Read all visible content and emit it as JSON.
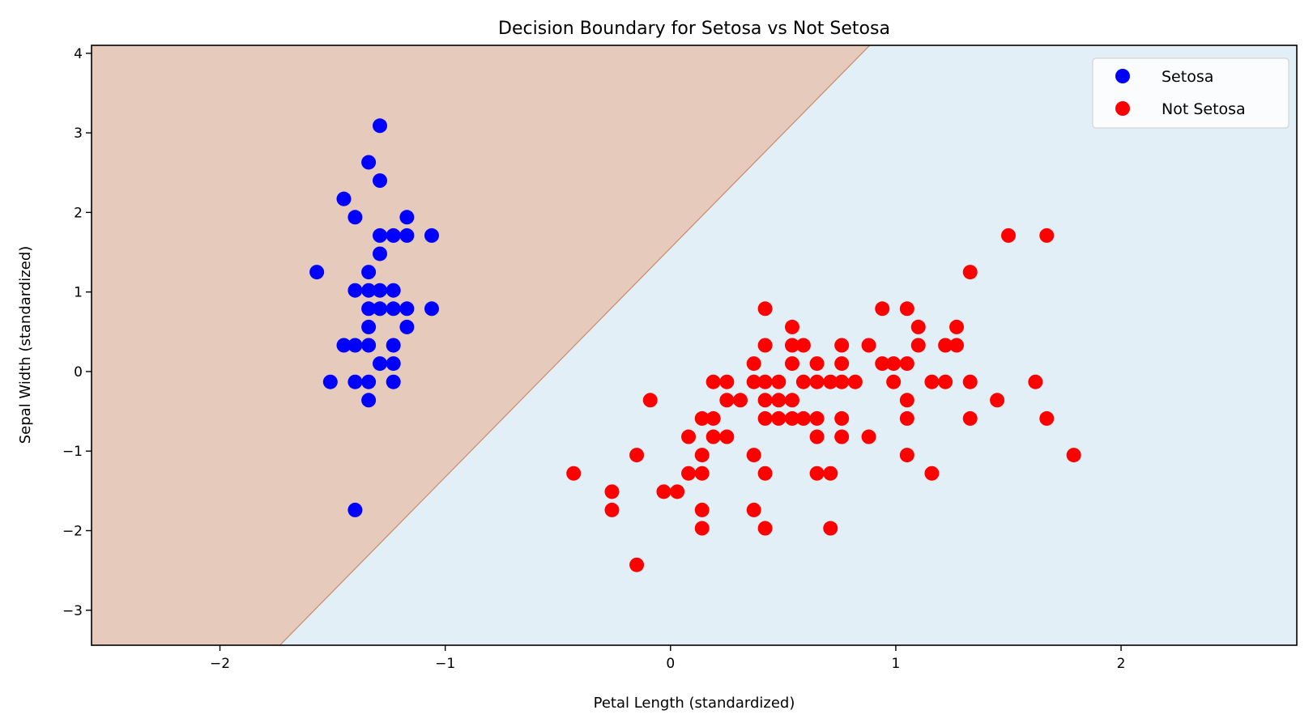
{
  "chart_data": {
    "type": "scatter",
    "title": "Decision Boundary for Setosa vs Not Setosa",
    "xlabel": "Petal Length (standardized)",
    "ylabel": "Sepal Width (standardized)",
    "xlim": [
      -2.57,
      2.78
    ],
    "ylim": [
      -3.44,
      4.1
    ],
    "xticks": [
      -2,
      -1,
      0,
      1,
      2
    ],
    "xtick_labels": [
      "−2",
      "−1",
      "0",
      "1",
      "2"
    ],
    "yticks": [
      -3,
      -2,
      -1,
      0,
      1,
      2,
      3,
      4
    ],
    "ytick_labels": [
      "−3",
      "−2",
      "−1",
      "0",
      "1",
      "2",
      "3",
      "4"
    ],
    "grid": false,
    "legend_position": "top-right",
    "decision_boundary": {
      "points": [
        [
          0.874,
          4.07
        ],
        [
          -1.734,
          -3.44
        ]
      ],
      "left_region_color": "#e6cbbd",
      "right_region_color": "#e3eff6",
      "edge_color": "#c98a6a"
    },
    "series": [
      {
        "name": "Setosa",
        "color": "#0000ff",
        "points": [
          [
            -1.29,
            3.09
          ],
          [
            -1.34,
            2.63
          ],
          [
            -1.29,
            2.4
          ],
          [
            -1.45,
            2.17
          ],
          [
            -1.4,
            1.94
          ],
          [
            -1.17,
            1.94
          ],
          [
            -1.29,
            1.71
          ],
          [
            -1.23,
            1.71
          ],
          [
            -1.17,
            1.71
          ],
          [
            -1.06,
            1.71
          ],
          [
            -1.29,
            1.48
          ],
          [
            -1.57,
            1.25
          ],
          [
            -1.34,
            1.25
          ],
          [
            -1.4,
            1.02
          ],
          [
            -1.34,
            1.02
          ],
          [
            -1.29,
            1.02
          ],
          [
            -1.23,
            1.02
          ],
          [
            -1.34,
            0.79
          ],
          [
            -1.29,
            0.79
          ],
          [
            -1.23,
            0.79
          ],
          [
            -1.17,
            0.79
          ],
          [
            -1.06,
            0.79
          ],
          [
            -1.34,
            0.56
          ],
          [
            -1.17,
            0.56
          ],
          [
            -1.45,
            0.33
          ],
          [
            -1.4,
            0.33
          ],
          [
            -1.34,
            0.33
          ],
          [
            -1.23,
            0.33
          ],
          [
            -1.29,
            0.1
          ],
          [
            -1.23,
            0.1
          ],
          [
            -1.51,
            -0.13
          ],
          [
            -1.4,
            -0.13
          ],
          [
            -1.34,
            -0.13
          ],
          [
            -1.23,
            -0.13
          ],
          [
            -1.34,
            -0.36
          ],
          [
            -1.4,
            -1.74
          ]
        ]
      },
      {
        "name": "Not Setosa",
        "color": "#ff0000",
        "points": [
          [
            1.5,
            1.71
          ],
          [
            1.67,
            1.71
          ],
          [
            1.33,
            1.25
          ],
          [
            0.42,
            0.79
          ],
          [
            0.94,
            0.79
          ],
          [
            1.05,
            0.79
          ],
          [
            0.54,
            0.56
          ],
          [
            1.1,
            0.56
          ],
          [
            1.27,
            0.56
          ],
          [
            0.42,
            0.33
          ],
          [
            0.54,
            0.33
          ],
          [
            0.59,
            0.33
          ],
          [
            0.76,
            0.33
          ],
          [
            0.88,
            0.33
          ],
          [
            1.1,
            0.33
          ],
          [
            1.22,
            0.33
          ],
          [
            1.27,
            0.33
          ],
          [
            0.37,
            0.1
          ],
          [
            0.54,
            0.1
          ],
          [
            0.65,
            0.1
          ],
          [
            0.76,
            0.1
          ],
          [
            0.94,
            0.1
          ],
          [
            0.99,
            0.1
          ],
          [
            1.05,
            0.1
          ],
          [
            0.19,
            -0.13
          ],
          [
            0.25,
            -0.13
          ],
          [
            0.37,
            -0.13
          ],
          [
            0.42,
            -0.13
          ],
          [
            0.48,
            -0.13
          ],
          [
            0.59,
            -0.13
          ],
          [
            0.65,
            -0.13
          ],
          [
            0.71,
            -0.13
          ],
          [
            0.76,
            -0.13
          ],
          [
            0.82,
            -0.13
          ],
          [
            0.99,
            -0.13
          ],
          [
            1.16,
            -0.13
          ],
          [
            1.22,
            -0.13
          ],
          [
            1.33,
            -0.13
          ],
          [
            1.62,
            -0.13
          ],
          [
            -0.09,
            -0.36
          ],
          [
            0.25,
            -0.36
          ],
          [
            0.31,
            -0.36
          ],
          [
            0.42,
            -0.36
          ],
          [
            0.48,
            -0.36
          ],
          [
            0.54,
            -0.36
          ],
          [
            1.05,
            -0.36
          ],
          [
            1.45,
            -0.36
          ],
          [
            0.14,
            -0.59
          ],
          [
            0.19,
            -0.59
          ],
          [
            0.42,
            -0.59
          ],
          [
            0.48,
            -0.59
          ],
          [
            0.54,
            -0.59
          ],
          [
            0.59,
            -0.59
          ],
          [
            0.65,
            -0.59
          ],
          [
            0.76,
            -0.59
          ],
          [
            1.05,
            -0.59
          ],
          [
            1.33,
            -0.59
          ],
          [
            1.67,
            -0.59
          ],
          [
            0.08,
            -0.82
          ],
          [
            0.19,
            -0.82
          ],
          [
            0.25,
            -0.82
          ],
          [
            0.65,
            -0.82
          ],
          [
            0.76,
            -0.82
          ],
          [
            0.88,
            -0.82
          ],
          [
            -0.15,
            -1.05
          ],
          [
            0.14,
            -1.05
          ],
          [
            0.37,
            -1.05
          ],
          [
            1.05,
            -1.05
          ],
          [
            1.79,
            -1.05
          ],
          [
            -0.43,
            -1.28
          ],
          [
            0.08,
            -1.28
          ],
          [
            0.14,
            -1.28
          ],
          [
            0.42,
            -1.28
          ],
          [
            0.65,
            -1.28
          ],
          [
            0.71,
            -1.28
          ],
          [
            1.16,
            -1.28
          ],
          [
            -0.26,
            -1.51
          ],
          [
            -0.03,
            -1.51
          ],
          [
            0.03,
            -1.51
          ],
          [
            -0.26,
            -1.74
          ],
          [
            0.14,
            -1.74
          ],
          [
            0.37,
            -1.74
          ],
          [
            0.14,
            -1.97
          ],
          [
            0.42,
            -1.97
          ],
          [
            0.71,
            -1.97
          ],
          [
            -0.15,
            -2.43
          ]
        ]
      }
    ]
  }
}
